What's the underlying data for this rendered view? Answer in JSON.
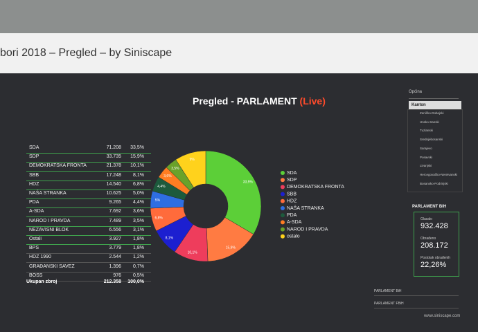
{
  "browser": {
    "tab_title": "bori 2018 – Pregled – by Siniscape"
  },
  "chart_data": {
    "type": "pie",
    "title": "Pregled - PARLAMENT",
    "subtitle": "(Live)",
    "categories": [
      "SDA",
      "SDP",
      "DEMOKRATSKA FRONTA",
      "SBB",
      "HDZ",
      "NAŠA STRANKA",
      "PDA",
      "A-SDA",
      "NAROD I PRAVDA",
      "ostalo"
    ],
    "values": [
      33.5,
      15.9,
      10.1,
      8.1,
      6.8,
      5.0,
      4.4,
      3.6,
      3.5,
      9.1
    ],
    "value_labels": [
      "33,5%",
      "15,9%",
      "10,1%",
      "8,1%",
      "6,8%",
      "5%",
      "4,4%",
      "3,6%",
      "3,5%",
      "9%"
    ],
    "colors": [
      "#5ccf38",
      "#ff7b42",
      "#ee3d5c",
      "#1c1fd0",
      "#ff6b3b",
      "#2e6ee2",
      "#1d5a3c",
      "#ff7d22",
      "#6aa22a",
      "#ffd21c"
    ],
    "legend": "right"
  },
  "table": {
    "rows": [
      [
        "SDA",
        "71.208",
        "33,5%"
      ],
      [
        "SDP",
        "33.735",
        "15,9%"
      ],
      [
        "DEMOKRATSKA FRONTA",
        "21.378",
        "10,1%"
      ],
      [
        "SBB",
        "17.248",
        "8,1%"
      ],
      [
        "HDZ",
        "14.540",
        "6,8%"
      ],
      [
        "NAŠA STRANKA",
        "10.625",
        "5,0%"
      ],
      [
        "PDA",
        "9.265",
        "4,4%"
      ],
      [
        "A-SDA",
        "7.692",
        "3,6%"
      ],
      [
        "NAROD I PRAVDA",
        "7.489",
        "3,5%"
      ],
      [
        "NEZAVISNI BLOK",
        "6.556",
        "3,1%"
      ],
      [
        "Ostali",
        "3.927",
        "1,8%"
      ],
      [
        "BPS",
        "3.779",
        "1,8%"
      ],
      [
        "HDZ 1990",
        "2.544",
        "1,2%"
      ],
      [
        "GRAĐANSKI SAVEZ",
        "1.396",
        "0,7%"
      ],
      [
        "BOSS",
        "976",
        "0,5%"
      ]
    ],
    "total": [
      "Ukupan zbroj",
      "212.358",
      "100,0%"
    ]
  },
  "sidebar": {
    "dropdown": "Općina",
    "selected": "Kanton",
    "items": [
      "Zeničko-Dobojski",
      "Unsko-Sanski",
      "Tuzlanski",
      "Srednjebosanski",
      "Sarajevo",
      "Posavski",
      "Livanjski",
      "Hercegovačko-Neretvanski",
      "Bosansko-Podrinjski"
    ]
  },
  "stats": {
    "title": "PARLAMENT BIH",
    "items": [
      {
        "label": "Glasalo",
        "value": "932.428"
      },
      {
        "label": "Obrađeno",
        "value": "208.172"
      },
      {
        "label": "Postotak obrađenih",
        "value": "22,26%"
      }
    ]
  },
  "footer": {
    "links": [
      "PARLAMENT BiH",
      "PARLAMENT FBiH"
    ],
    "url": "www.siniscape.com"
  }
}
